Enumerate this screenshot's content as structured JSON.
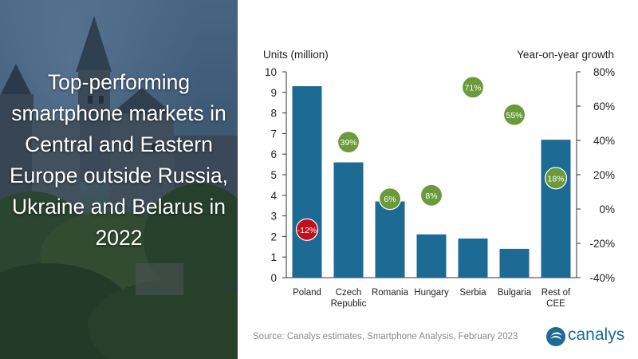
{
  "headline": "Top-performing smartphone markets in Central and Eastern Europe outside Russia, Ukraine and Belarus in 2022",
  "source": "Source: Canalys estimates, Smartphone Analysis, February 2023",
  "logo": {
    "text": "canalys"
  },
  "colors": {
    "bar": "#1d6a95",
    "positive_growth": "#6a9a3a",
    "negative_growth": "#c0101a"
  },
  "chart_data": {
    "type": "bar",
    "categories": [
      [
        "Poland"
      ],
      [
        "Czech",
        "Republic"
      ],
      [
        "Romania"
      ],
      [
        "Hungary"
      ],
      [
        "Serbia"
      ],
      [
        "Bulgaria"
      ],
      [
        "Rest of",
        "CEE"
      ]
    ],
    "values": [
      9.3,
      5.6,
      3.7,
      2.1,
      1.9,
      1.4,
      6.7
    ],
    "growth_percent": [
      -12,
      39,
      6,
      8,
      71,
      55,
      18
    ],
    "growth_labels": [
      "-12%",
      "39%",
      "6%",
      "8%",
      "71%",
      "55%",
      "18%"
    ],
    "ylabel": "Units (million)",
    "y2label": "Year-on-year growth",
    "ylim": [
      0,
      10
    ],
    "yticks": [
      "0",
      "1",
      "2",
      "3",
      "4",
      "5",
      "6",
      "7",
      "8",
      "9",
      "10"
    ],
    "y2lim": [
      -40,
      80
    ],
    "y2ticks": [
      "-40%",
      "-20%",
      "0%",
      "20%",
      "40%",
      "60%",
      "80%"
    ],
    "grid": false,
    "legend": "none"
  }
}
